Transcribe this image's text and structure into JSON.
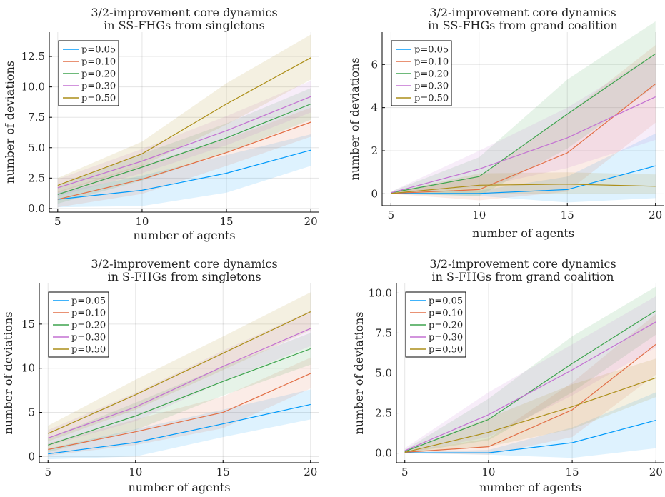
{
  "chart_data": [
    {
      "type": "line",
      "title": [
        "3/2-improvement core dynamics",
        "in SS-FHGs from singletons"
      ],
      "xlabel": "number of agents",
      "ylabel": "number of deviations",
      "x": [
        5,
        10,
        15,
        20
      ],
      "xlim": [
        4.5,
        20.5
      ],
      "ylim": [
        -0.3,
        14.5
      ],
      "yticks": [
        0,
        2.5,
        5,
        7.5,
        10,
        12.5
      ],
      "ytick_labels": [
        "0.0",
        "2.5",
        "5.0",
        "7.5",
        "10.0",
        "12.5"
      ],
      "xticks": [
        5,
        10,
        15,
        20
      ],
      "xtick_labels": [
        "5",
        "10",
        "15",
        "20"
      ],
      "legend": "top-left",
      "grid": true,
      "series": [
        {
          "name": "p=0.05",
          "color": "#009AFA",
          "values": [
            0.75,
            1.5,
            2.9,
            4.8
          ],
          "lower": [
            0.1,
            0.2,
            1.3,
            3.5
          ],
          "upper": [
            1.3,
            2.7,
            4.4,
            6.1
          ]
        },
        {
          "name": "p=0.10",
          "color": "#E26F46",
          "values": [
            0.75,
            2.4,
            4.6,
            7.1
          ],
          "lower": [
            0.1,
            1.2,
            3.5,
            5.9
          ],
          "upper": [
            1.4,
            3.6,
            5.7,
            8.3
          ]
        },
        {
          "name": "p=0.20",
          "color": "#3EA44E",
          "values": [
            1.15,
            3.4,
            5.8,
            8.6
          ],
          "lower": [
            0.4,
            2.3,
            4.6,
            7.3
          ],
          "upper": [
            1.9,
            4.5,
            7.0,
            9.9
          ]
        },
        {
          "name": "p=0.30",
          "color": "#C371D2",
          "values": [
            1.7,
            3.9,
            6.4,
            9.2
          ],
          "lower": [
            1.0,
            2.9,
            5.2,
            7.9
          ],
          "upper": [
            2.4,
            4.9,
            7.6,
            10.5
          ]
        },
        {
          "name": "p=0.50",
          "color": "#AC8E18",
          "values": [
            1.9,
            4.5,
            8.6,
            12.4
          ],
          "lower": [
            1.3,
            3.5,
            6.9,
            10.6
          ],
          "upper": [
            2.5,
            5.5,
            10.3,
            14.3
          ]
        }
      ]
    },
    {
      "type": "line",
      "title": [
        "3/2-improvement core dynamics",
        "in SS-FHGs from grand coalition"
      ],
      "xlabel": "number of agents",
      "ylabel": "number of deviations",
      "x": [
        5,
        10,
        15,
        20
      ],
      "xlim": [
        4.5,
        20.5
      ],
      "ylim": [
        -0.55,
        7.5
      ],
      "yticks": [
        0,
        2,
        4,
        6
      ],
      "ytick_labels": [
        "0",
        "2",
        "4",
        "6"
      ],
      "xticks": [
        5,
        10,
        15,
        20
      ],
      "xtick_labels": [
        "5",
        "10",
        "15",
        "20"
      ],
      "legend": "top-left",
      "grid": true,
      "series": [
        {
          "name": "p=0.05",
          "color": "#009AFA",
          "values": [
            0.02,
            0.02,
            0.2,
            1.3
          ],
          "lower": [
            0.0,
            -0.1,
            -0.4,
            -0.2
          ],
          "upper": [
            0.05,
            0.15,
            0.8,
            2.8
          ]
        },
        {
          "name": "p=0.10",
          "color": "#E26F46",
          "values": [
            0.02,
            0.2,
            1.9,
            5.1
          ],
          "lower": [
            0.0,
            -0.3,
            0.1,
            3.3
          ],
          "upper": [
            0.05,
            0.8,
            3.7,
            6.9
          ]
        },
        {
          "name": "p=0.20",
          "color": "#3EA44E",
          "values": [
            0.05,
            0.8,
            3.7,
            6.5
          ],
          "lower": [
            0.0,
            -0.1,
            2.1,
            5.0
          ],
          "upper": [
            0.1,
            1.7,
            5.3,
            8.0
          ]
        },
        {
          "name": "p=0.30",
          "color": "#C371D2",
          "values": [
            0.05,
            1.15,
            2.6,
            4.5
          ],
          "lower": [
            0.0,
            0.3,
            1.2,
            2.5
          ],
          "upper": [
            0.1,
            2.0,
            4.0,
            6.5
          ]
        },
        {
          "name": "p=0.50",
          "color": "#AC8E18",
          "values": [
            0.02,
            0.4,
            0.45,
            0.35
          ],
          "lower": [
            0.0,
            0.0,
            0.0,
            0.0
          ],
          "upper": [
            0.05,
            0.95,
            1.0,
            0.9
          ]
        }
      ]
    },
    {
      "type": "line",
      "title": [
        "3/2-improvement core dynamics",
        "in S-FHGs from singletons"
      ],
      "xlabel": "number of agents",
      "ylabel": "number of deviations",
      "x": [
        5,
        10,
        15,
        20
      ],
      "xlim": [
        4.5,
        20.5
      ],
      "ylim": [
        -0.7,
        19.6
      ],
      "yticks": [
        0,
        5,
        10,
        15
      ],
      "ytick_labels": [
        "0",
        "5",
        "10",
        "15"
      ],
      "xticks": [
        5,
        10,
        15,
        20
      ],
      "xtick_labels": [
        "5",
        "10",
        "15",
        "20"
      ],
      "legend": "top-left",
      "grid": true,
      "series": [
        {
          "name": "p=0.05",
          "color": "#009AFA",
          "values": [
            0.3,
            1.6,
            3.7,
            5.9
          ],
          "lower": [
            -0.3,
            0.0,
            2.2,
            4.2
          ],
          "upper": [
            0.9,
            3.1,
            5.3,
            7.6
          ]
        },
        {
          "name": "p=0.10",
          "color": "#E26F46",
          "values": [
            0.8,
            2.8,
            5.0,
            9.4
          ],
          "lower": [
            0.1,
            1.3,
            3.2,
            7.7
          ],
          "upper": [
            1.5,
            4.2,
            6.8,
            11.2
          ]
        },
        {
          "name": "p=0.20",
          "color": "#3EA44E",
          "values": [
            1.3,
            4.6,
            8.5,
            12.2
          ],
          "lower": [
            0.5,
            3.0,
            6.9,
            10.4
          ],
          "upper": [
            2.1,
            6.1,
            10.2,
            14.0
          ]
        },
        {
          "name": "p=0.30",
          "color": "#C371D2",
          "values": [
            2.1,
            5.6,
            10.2,
            14.5
          ],
          "lower": [
            1.2,
            4.0,
            8.5,
            12.5
          ],
          "upper": [
            3.0,
            7.2,
            12.0,
            16.5
          ]
        },
        {
          "name": "p=0.50",
          "color": "#AC8E18",
          "values": [
            2.6,
            7.0,
            11.7,
            16.4
          ],
          "lower": [
            1.7,
            5.3,
            9.8,
            14.3
          ],
          "upper": [
            3.5,
            8.7,
            13.6,
            18.6
          ]
        }
      ]
    },
    {
      "type": "line",
      "title": [
        "3/2-improvement core dynamics",
        "in S-FHGs from grand coalition"
      ],
      "xlabel": "number of agents",
      "ylabel": "number of deviations",
      "x": [
        5,
        10,
        15,
        20
      ],
      "xlim": [
        4.5,
        20.5
      ],
      "ylim": [
        -0.6,
        10.6
      ],
      "yticks": [
        0,
        2.5,
        5,
        7.5,
        10
      ],
      "ytick_labels": [
        "0.0",
        "2.5",
        "5.0",
        "7.5",
        "10.0"
      ],
      "xticks": [
        5,
        10,
        15,
        20
      ],
      "xtick_labels": [
        "5",
        "10",
        "15",
        "20"
      ],
      "legend": "top-left",
      "grid": true,
      "series": [
        {
          "name": "p=0.05",
          "color": "#009AFA",
          "values": [
            0.02,
            0.02,
            0.65,
            2.05
          ],
          "lower": [
            0.0,
            -0.1,
            -0.3,
            0.3
          ],
          "upper": [
            0.05,
            0.2,
            1.6,
            3.8
          ]
        },
        {
          "name": "p=0.10",
          "color": "#E26F46",
          "values": [
            0.05,
            0.4,
            2.7,
            6.8
          ],
          "lower": [
            0.0,
            -0.1,
            1.0,
            4.9
          ],
          "upper": [
            0.1,
            0.9,
            4.4,
            8.7
          ]
        },
        {
          "name": "p=0.20",
          "color": "#3EA44E",
          "values": [
            0.1,
            2.1,
            5.6,
            8.9
          ],
          "lower": [
            0.0,
            0.8,
            3.8,
            7.4
          ],
          "upper": [
            0.2,
            3.4,
            7.3,
            10.4
          ]
        },
        {
          "name": "p=0.30",
          "color": "#C371D2",
          "values": [
            0.15,
            2.4,
            5.2,
            8.2
          ],
          "lower": [
            0.0,
            1.0,
            3.6,
            6.6
          ],
          "upper": [
            0.3,
            3.8,
            6.8,
            9.8
          ]
        },
        {
          "name": "p=0.50",
          "color": "#AC8E18",
          "values": [
            0.05,
            1.3,
            2.9,
            4.7
          ],
          "lower": [
            0.0,
            0.4,
            1.5,
            3.5
          ],
          "upper": [
            0.1,
            2.2,
            4.3,
            5.9
          ]
        }
      ]
    }
  ]
}
